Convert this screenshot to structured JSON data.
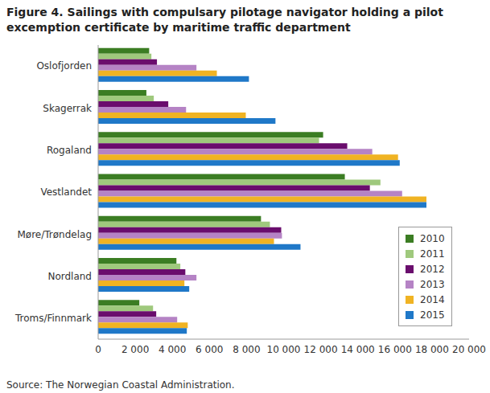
{
  "chart_data": {
    "type": "bar",
    "orientation": "horizontal",
    "title": "Figure 4. Sailings with compulsary pilotage navigator holding a pilot excemption certificate by maritime traffic department",
    "source": "Source: The Norwegian Coastal Administration.",
    "categories": [
      "Oslofjorden",
      "Skagerrak",
      "Rogaland",
      "Vestlandet",
      "Møre/Trøndelag",
      "Nordland",
      "Troms/Finnmark"
    ],
    "series": [
      {
        "name": "2010",
        "color": "#3b7d23",
        "values": [
          2750,
          2600,
          12130,
          13300,
          8780,
          4220,
          2220
        ]
      },
      {
        "name": "2011",
        "color": "#9fc97d",
        "values": [
          2870,
          3000,
          11910,
          15220,
          9260,
          4430,
          2960
        ]
      },
      {
        "name": "2012",
        "color": "#6a0d6d",
        "values": [
          3170,
          3780,
          13430,
          14650,
          9870,
          4700,
          3130
        ]
      },
      {
        "name": "2013",
        "color": "#b583c5",
        "values": [
          5300,
          4740,
          14780,
          16390,
          9910,
          5300,
          4260
        ]
      },
      {
        "name": "2014",
        "color": "#f0b323",
        "values": [
          6400,
          7960,
          16170,
          17700,
          9480,
          4650,
          4830
        ]
      },
      {
        "name": "2015",
        "color": "#1f78c8",
        "values": [
          8130,
          9560,
          16260,
          17700,
          10910,
          4910,
          4780
        ]
      }
    ],
    "xlim": [
      0,
      20000
    ],
    "xticks": [
      0,
      {
        "value": 2000,
        "label": "2 000"
      },
      {
        "value": 4000,
        "label": "4 000"
      },
      {
        "value": 6000,
        "label": "6 000"
      },
      {
        "value": 8000,
        "label": "8 000"
      },
      {
        "value": 10000,
        "label": "10 000"
      },
      {
        "value": 12000,
        "label": "12 000"
      },
      {
        "value": 14000,
        "label": "14 000"
      },
      {
        "value": 16000,
        "label": "16 000"
      },
      {
        "value": 18000,
        "label": "18 000"
      },
      {
        "value": 20000,
        "label": "20 000"
      }
    ],
    "grid": false,
    "legend": "lower right"
  }
}
